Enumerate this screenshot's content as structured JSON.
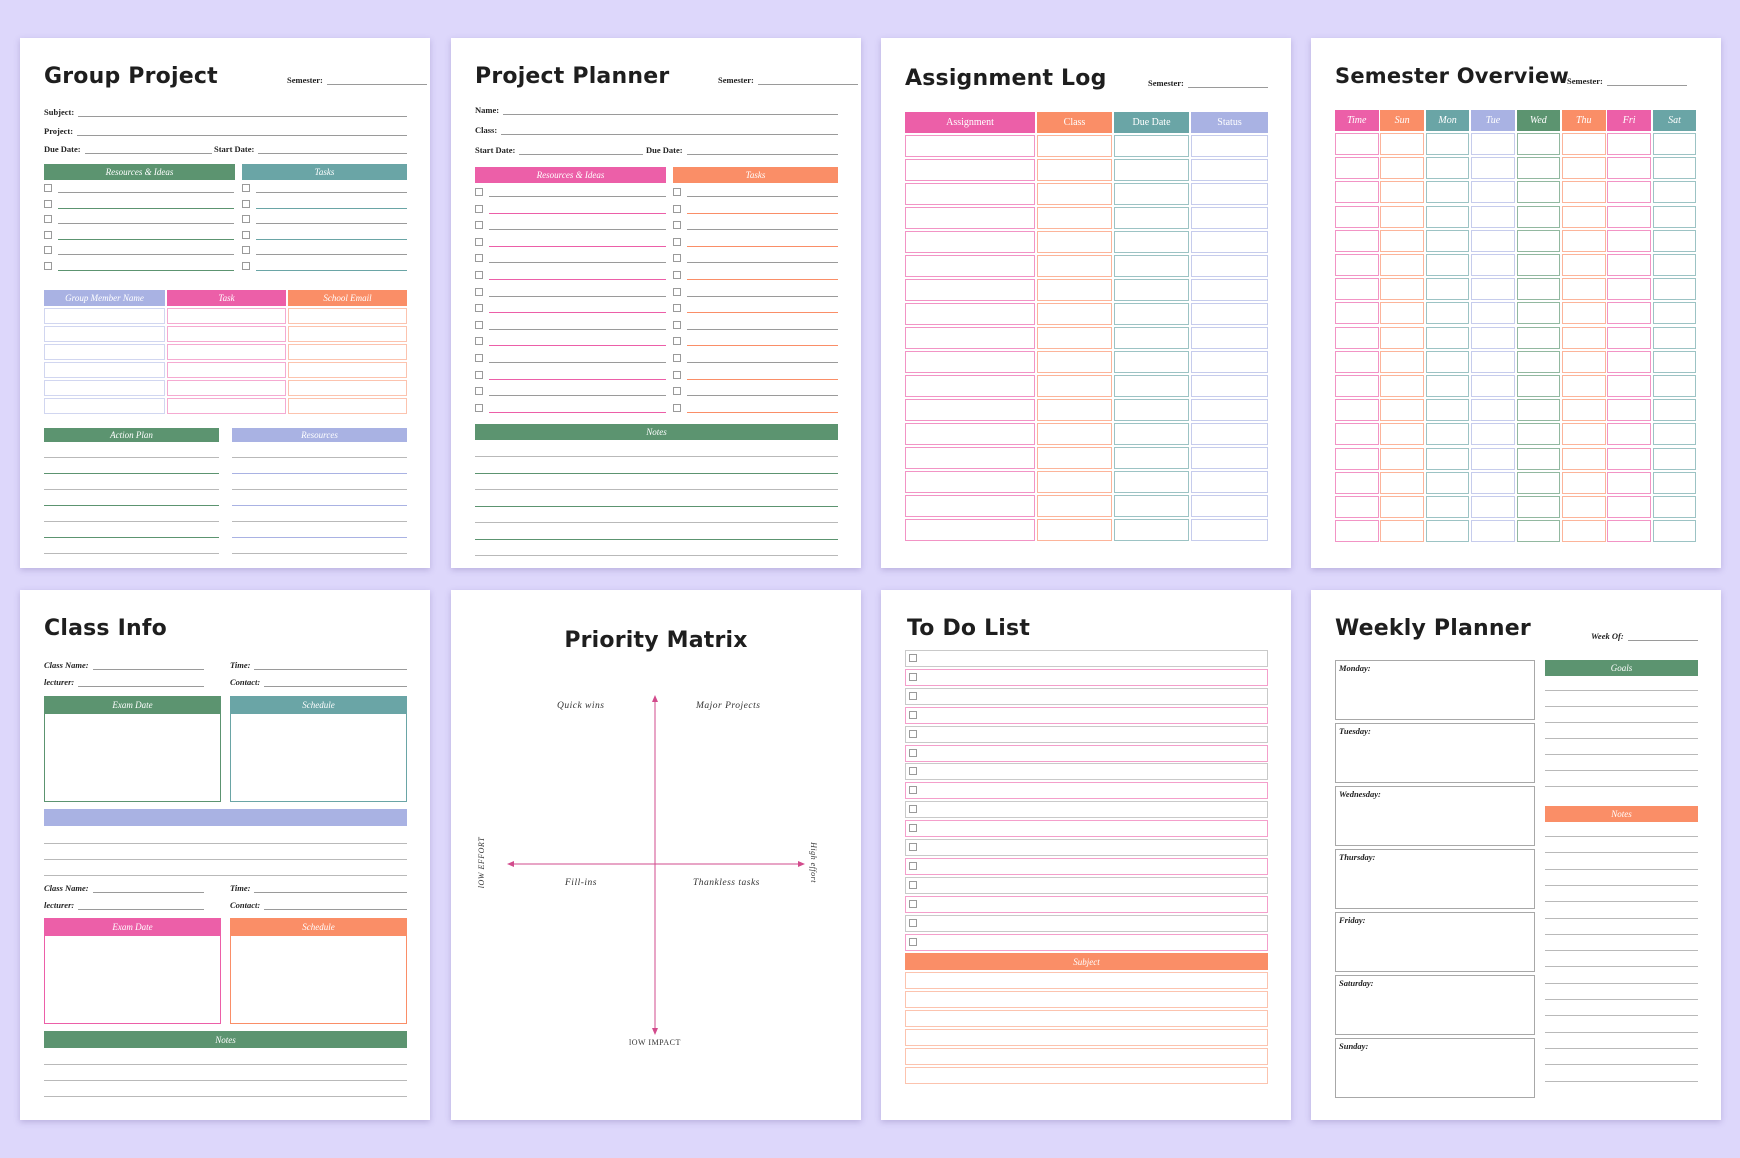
{
  "colors": {
    "green": "#5c9470",
    "teal": "#6aa5a6",
    "pink": "#ec5fa8",
    "orange": "#fa8e67",
    "lavender": "#a9b2e3",
    "purple": "#a9b2e3",
    "background": "#ddd7fb"
  },
  "group_project": {
    "title": "Group Project",
    "semester": "Semester:",
    "subject": "Subject:",
    "project": "Project:",
    "due_date": "Due Date:",
    "start_date": "Start Date:",
    "resources": "Resources & Ideas",
    "tasks": "Tasks",
    "member_name": "Group Member Name",
    "task": "Task",
    "school_email": "School Email",
    "action_plan": "Action Plan",
    "resources2": "Resources"
  },
  "project_planner": {
    "title": "Project Planner",
    "semester": "Semester:",
    "name": "Name:",
    "class": "Class:",
    "start_date": "Start Date:",
    "due_date": "Due Date:",
    "resources": "Resources & Ideas",
    "tasks": "Tasks",
    "notes": "Notes"
  },
  "assignment_log": {
    "title": "Assignment Log",
    "semester": "Semester:",
    "columns": [
      "Assignment",
      "Class",
      "Due Date",
      "Status"
    ]
  },
  "semester_overview": {
    "title": "Semester Overview",
    "semester": "Semester:",
    "columns": [
      "Time",
      "Sun",
      "Mon",
      "Tue",
      "Wed",
      "Thu",
      "Fri",
      "Sat"
    ]
  },
  "class_info": {
    "title": "Class Info",
    "class_name": "Class Name:",
    "time": "Time:",
    "lecturer": "lecturer:",
    "contact": "Contact:",
    "exam_date": "Exam Date",
    "schedule": "Schedule",
    "notes": "Notes"
  },
  "priority_matrix": {
    "title": "Priority Matrix",
    "quick_wins": "Quick wins",
    "major_projects": "Major Projects",
    "fill_ins": "Fill-ins",
    "thankless_tasks": "Thankless tasks",
    "low_effort": "lOW EFFORT",
    "high_effort": "High effort",
    "low_impact": "lOW IMPACT"
  },
  "todo_list": {
    "title": "To Do List",
    "subject": "Subject"
  },
  "weekly_planner": {
    "title": "Weekly Planner",
    "week_of": "Week Of:",
    "days": [
      "Monday:",
      "Tuesday:",
      "Wednesday:",
      "Thursday:",
      "Friday:",
      "Saturday:",
      "Sunday:"
    ],
    "goals": "Goals",
    "notes": "Notes"
  }
}
